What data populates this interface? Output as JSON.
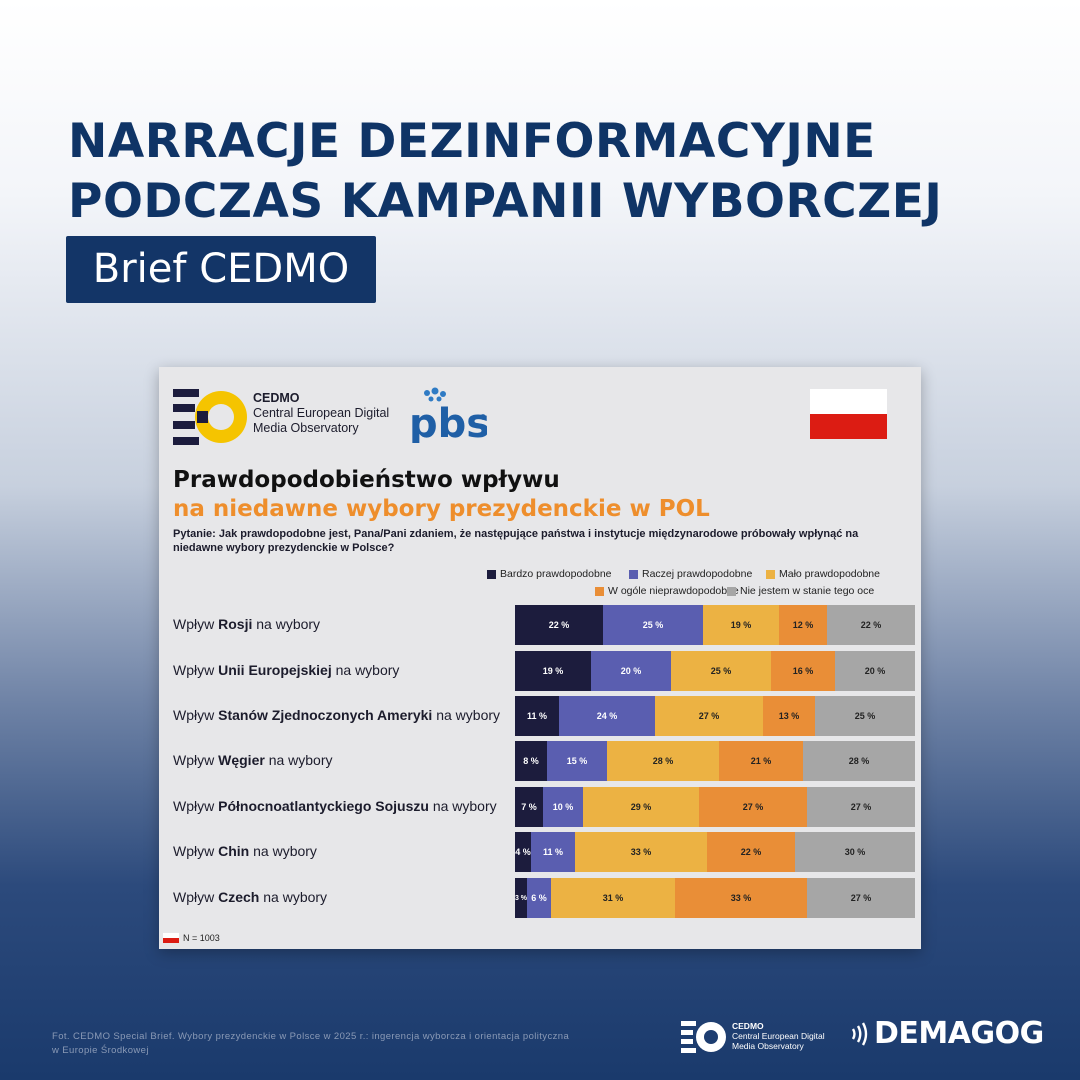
{
  "page": {
    "headline": [
      "NARRACJE DEZINFORMACYJNE",
      "PODCZAS KAMPANII WYBORCZEJ"
    ],
    "badge": "Brief CEDMO",
    "caption": "Fot. CEDMO Special Brief. Wybory prezydenckie w Polsce w 2025 r.: ingerencja wyborcza i orientacja polityczna w Europie Środkowej",
    "footer_cedmo": {
      "name": "CEDMO",
      "line1": "Central European Digital",
      "line2": "Media Observatory"
    },
    "footer_brand": "DEMAGOG"
  },
  "card": {
    "cedmo": {
      "name": "CEDMO",
      "line1": "Central European Digital",
      "line2": "Media Observatory"
    },
    "pbs_logo": "pbs",
    "title1": "Prawdopodobieństwo wpływu",
    "title2": "na niedawne wybory prezydenckie w POL",
    "question": "Pytanie: Jak prawdopodobne jest, Pana/Pani zdaniem, że następujące państwa i instytucje międzynarodowe próbowały wpłynąć na niedawne wybory prezydenckie w Polsce?",
    "n_note": "N = 1003",
    "flag_colors": [
      "#ffffff",
      "#dc1c13"
    ]
  },
  "chart_data": {
    "type": "bar",
    "orientation": "horizontal",
    "stacked": true,
    "categories": [
      [
        {
          "t": "Wpływ ",
          "b": false
        },
        {
          "t": "Rosji",
          "b": true
        },
        {
          "t": " na wybory",
          "b": false
        }
      ],
      [
        {
          "t": "Wpływ ",
          "b": false
        },
        {
          "t": "Unii Europejskiej",
          "b": true
        },
        {
          "t": " na wybory",
          "b": false
        }
      ],
      [
        {
          "t": "Wpływ ",
          "b": false
        },
        {
          "t": "Stanów Zjednoczonych Ameryki",
          "b": true
        },
        {
          "t": " na wybory",
          "b": false
        }
      ],
      [
        {
          "t": "Wpływ ",
          "b": false
        },
        {
          "t": "Węgier",
          "b": true
        },
        {
          "t": " na wybory",
          "b": false
        }
      ],
      [
        {
          "t": "Wpływ ",
          "b": false
        },
        {
          "t": "Północnoatlantyckiego Sojuszu",
          "b": true
        },
        {
          "t": " na wybory",
          "b": false
        }
      ],
      [
        {
          "t": "Wpływ ",
          "b": false
        },
        {
          "t": "Chin",
          "b": true
        },
        {
          "t": " na wybory",
          "b": false
        }
      ],
      [
        {
          "t": "Wpływ ",
          "b": false
        },
        {
          "t": "Czech",
          "b": true
        },
        {
          "t": " na wybory",
          "b": false
        }
      ]
    ],
    "series": [
      {
        "name": "Bardzo prawdopodobne",
        "color": "#1c1c3d",
        "text_color": "#ffffff",
        "values": [
          22,
          19,
          11,
          8,
          7,
          4,
          3
        ]
      },
      {
        "name": "Raczej prawdopodobne",
        "color": "#5a5eb0",
        "text_color": "#ffffff",
        "values": [
          25,
          20,
          24,
          15,
          10,
          11,
          6
        ]
      },
      {
        "name": "Mało prawdopodobne",
        "color": "#ecb243",
        "text_color": "#222222",
        "values": [
          19,
          25,
          27,
          28,
          29,
          33,
          31
        ]
      },
      {
        "name": "W ogóle nieprawdopodobne",
        "color": "#e98e37",
        "text_color": "#222222",
        "values": [
          12,
          16,
          13,
          21,
          27,
          22,
          33
        ]
      },
      {
        "name": "Nie jestem w stanie tego ocenić",
        "legend_text": "Nie jestem w stanie tego oce",
        "color": "#a6a6a6",
        "text_color": "#222222",
        "values": [
          22,
          20,
          25,
          28,
          27,
          30,
          27
        ]
      }
    ],
    "value_suffix": " %",
    "legend_position": "top-right",
    "xlim": [
      0,
      100
    ]
  }
}
